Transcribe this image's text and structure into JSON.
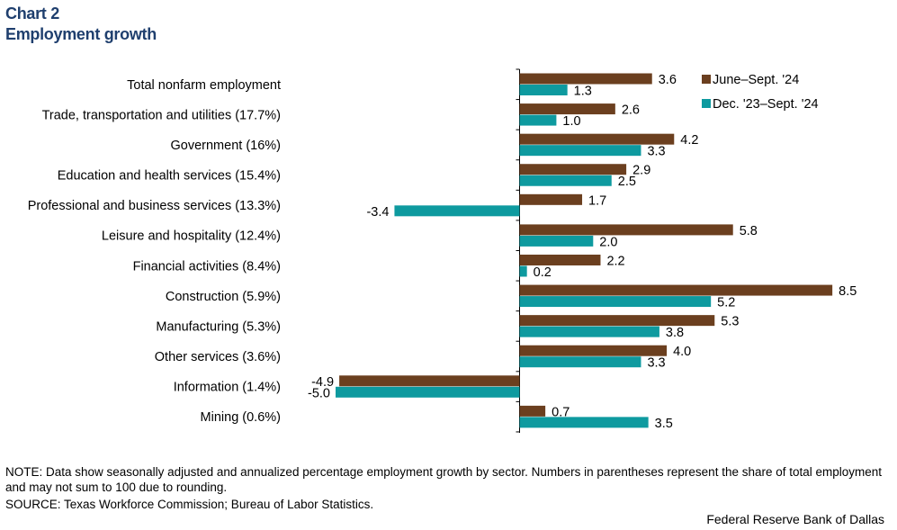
{
  "header": {
    "chart_number": "Chart 2",
    "chart_title": "Employment growth"
  },
  "footer": {
    "note": "NOTE: Data show seasonally adjusted and annualized percentage employment growth by sector. Numbers in parentheses represent the share of total employment and may not sum to 100 due to rounding.",
    "source": "SOURCE: Texas Workforce Commission; Bureau of Labor Statistics.",
    "credit": "Federal Reserve Bank of Dallas"
  },
  "chart_data": {
    "type": "bar",
    "orientation": "horizontal",
    "title": "Employment growth",
    "xlabel": "",
    "ylabel": "",
    "xlim": [
      -5.0,
      8.5
    ],
    "grid": false,
    "legend_position": "top-right",
    "categories": [
      "Total nonfarm employment",
      "Trade, transportation and utilities (17.7%)",
      "Government (16%)",
      "Education and health services (15.4%)",
      "Professional and business services (13.3%)",
      "Leisure and hospitality (12.4%)",
      "Financial activities (8.4%)",
      "Construction (5.9%)",
      "Manufacturing (5.3%)",
      "Other services (3.6%)",
      "Information (1.4%)",
      "Mining (0.6%)"
    ],
    "series": [
      {
        "name": "June–Sept. '24",
        "color": "#6b3f1f",
        "values": [
          3.6,
          2.6,
          4.2,
          2.9,
          1.7,
          5.8,
          2.2,
          8.5,
          5.3,
          4.0,
          -4.9,
          0.7
        ]
      },
      {
        "name": "Dec. '23–Sept. '24",
        "color": "#0e9a9f",
        "values": [
          1.3,
          1.0,
          3.3,
          2.5,
          -3.4,
          2.0,
          0.2,
          5.2,
          3.8,
          3.3,
          -5.0,
          3.5
        ]
      }
    ]
  }
}
